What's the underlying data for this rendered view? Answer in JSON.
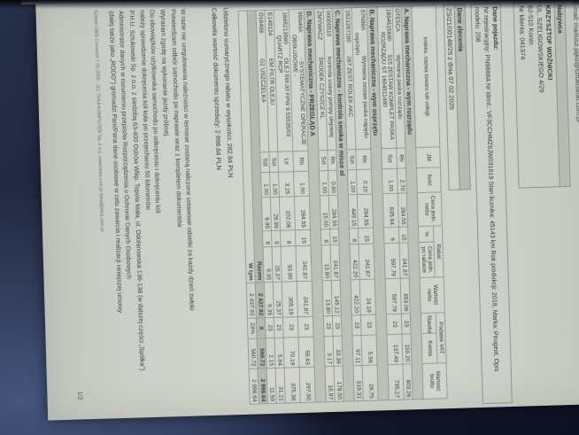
{
  "header": {
    "email_line": "E-mail: mariusz.jajko@sztukowski.com.pl",
    "buyer": {
      "label": "Nabywca",
      "name": "KRZYSZTOF WOŹNICKI",
      "street": "UL. SZELIGOWSKIEGO 4/29",
      "city": "62-510 Konin",
      "client_no": "Nr klienta: 041374"
    },
    "vehicle": {
      "label": "Dane pojazdu:",
      "line1": "Nr rejestracyjny: PN9888A   Nr ident.: VF3CCHMZ6JW031619   Stan licznika: 45143 km   Rok produkcji: 2018, Marka: Peugeot, Opis",
      "line2": "modelu: 208"
    },
    "order": {
      "label": "Dane zlecenia",
      "value": "ZS/21/00148/25 z dnia 07.02.2025"
    }
  },
  "table": {
    "headers": {
      "index": "Indeks, nazwa towaru lub usługi",
      "jm": "JM",
      "qty": "Ilość",
      "unit_price": "Cena jedn. netto",
      "discount_group": "Rabat",
      "discount_pct": "%",
      "price_after": "Cena jedn. po rabacie",
      "net_value": "Wartość netto",
      "vat_group": "Podatek VAT",
      "vat_rate": "Stawka",
      "vat_amount": "Kwota",
      "gross_value": "Wartość brutto"
    },
    "sections": [
      {
        "title": "A.   Naprawa mechaniczna - wym rozrządu",
        "rows": [
          {
            "code": "OTE5CA",
            "desc": "wymiana paska rozrządu",
            "desc2": "",
            "jm": "Rh",
            "qty": "2.70",
            "price": "284.55",
            "disc": "15",
            "after": "241.87",
            "net": "653.06",
            "rate": "23",
            "vat": "150.20",
            "gross": "803.26"
          },
          {
            "code": "1654515680",
            "desc": "515 ZESTAW KOMPLET PASKA",
            "desc2": "ROZRZĄDU ST  1654511480",
            "jm": "Szt",
            "qty": "1.00",
            "price": "635.94",
            "disc": "6",
            "after": "597.78",
            "net": "597.78",
            "rate": "23",
            "vat": "137.49",
            "gross": "735.27"
          }
        ]
      },
      {
        "title": "B.   Naprawa mechaniczna - wym osprzętu",
        "rows": [
          {
            "code": "57N99A",
            "desc": "Wymiana zestaw paska napędu",
            "desc2": "osprzętu",
            "jm": "Rh",
            "qty": "0.10",
            "price": "284.55",
            "disc": "15",
            "after": "241.87",
            "net": "24.19",
            "rate": "23",
            "vat": "5.56",
            "gross": "29.75"
          },
          {
            "code": "1621267280",
            "desc": "267 ZEST ROLEK AKC",
            "desc2": "",
            "jm": "Szt",
            "qty": "1.00",
            "price": "449.15",
            "disc": "6",
            "after": "422.20",
            "net": "422.20",
            "rate": "23",
            "vat": "97.11",
            "gross": "519.31"
          }
        ]
      },
      {
        "title": "C.   Naprawa mechaniczna - kontrola smoka w misce ol",
        "rows": [
          {
            "code": "00000510",
            "desc": "kontrola ssawy pompy olejowej",
            "desc2": "",
            "jm": "Rh",
            "qty": "0.60",
            "price": "284.55",
            "disc": "15",
            "after": "241.87",
            "net": "145.12",
            "rate": "23",
            "vat": "33.38",
            "gross": "178.50"
          },
          {
            "code": "ZMYWACZ",
            "desc": "ŚRODEK CZYSZCZ KL",
            "desc2": "",
            "jm": "Szt",
            "qty": "1.00",
            "price": "15.00",
            "disc": "8",
            "after": "13.80",
            "net": "13.80",
            "rate": "23",
            "vat": "3.17",
            "gross": "16.97"
          }
        ]
      },
      {
        "title": "D.   Naprawa mechaniczna - PRZEGLĄD A",
        "rows": [
          {
            "code": "99N49A",
            "desc": "- SYSTEMATYCZNE OPERACJE",
            "desc2": "OBSŁUGOWE -",
            "jm": "Rh",
            "qty": "1.00",
            "price": "284.55",
            "disc": "15",
            "after": "241.87",
            "net": "241.87",
            "rate": "23",
            "vat": "55.63",
            "gross": "297.50"
          },
          {
            "code": "1685213980",
            "desc": "OLEJ 5W-30 FPW 9.55535/03",
            "desc2": "QUARTZ RCP",
            "jm": "Ltr",
            "qty": "3.25",
            "price": "102.06",
            "disc": "8",
            "after": "93.90",
            "net": "305.19",
            "rate": "23",
            "vat": "70.19",
            "gross": "375.38"
          },
          {
            "code": "E149134",
            "desc": "EM FILTR OLEJU",
            "desc2": "",
            "jm": "Szt",
            "qty": "1.00",
            "price": "26.99",
            "disc": "6",
            "after": "25.37",
            "net": "25.37",
            "rate": "23",
            "vat": "5.84",
            "gross": "31.21"
          },
          {
            "code": "D16488",
            "desc": "G2 USZCZELKA",
            "desc2": "",
            "jm": "Szt",
            "qty": "1.00",
            "price": "9.95",
            "disc": "6",
            "after": "9.35",
            "net": "9.35",
            "rate": "23",
            "vat": "2.15",
            "gross": "11.50"
          }
        ]
      }
    ],
    "totals": [
      {
        "label": "Razem",
        "net": "2 437.92",
        "rate": "X",
        "vat": "560.72",
        "gross": "2 998.64",
        "shaded": true
      },
      {
        "label": "W tym",
        "net": "2 437.92",
        "rate": "23%",
        "vat": "560.72",
        "gross": "2 998.64",
        "shaded": false
      }
    ]
  },
  "summary": {
    "discount_line": "Udzielono sumarycznego rabatu w wysokości: 282.84 PLN",
    "total_line": "Całkowita wartość dokumentu sprzedaży: 2 998.64 PLN"
  },
  "legal_lines": [
    "W razie nie uregulowania należności w terminie zostaną naliczone ustawowe odsetki za każdy dzień zwłoki",
    "Potwierdzam odbiór samochodu po naprawie wraz z kompletem dokumentów",
    "Wyrażam zgodę na wykonanie jazdy próbnej.",
    "Do obowiązków użytkownika samochodu po odkręceniu i dokręceniu kół",
    "należy sprawdzenie dokręcenia kół koła po przejechaniu 50 kilometrów",
    "P.H.U. Sztukowski Sp. z o.o. z siedzibą 63-400 Ostrów Wlkp. Topola Mała, ul. Odolanowska 136-138 (w dalszej części „Spółka\")",
    "Administrator danych w rozumieniu przepisów Rozporządzenia o Ochronie Danych Osobowych",
    "(dalej także jako „RODO\") gromadzi Pani/Pana dane osobowe w celu zawarcia i realizacji niniejszej umowy"
  ],
  "system_line": "System DMS Comarch 7.05.2005 - (C) TEKA KOMPUTER Sp. z o.o.   www.teka.com.pl   teka@teka.com.pl",
  "page_number": "1/2"
}
